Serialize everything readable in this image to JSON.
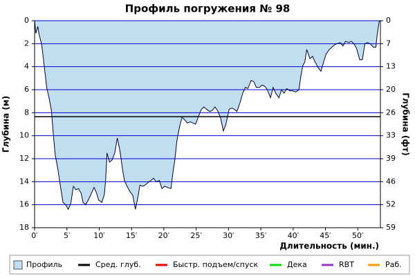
{
  "chart_data": {
    "type": "area",
    "title": "Профиль погружения № 98",
    "x_label": "Длительность (мин.)",
    "y_label": "Глубина (м)",
    "y2_label": "Глубина (фт)",
    "inverted_y": true,
    "grid": true,
    "grid_color": "#0000cc",
    "xlim": [
      0,
      53.5
    ],
    "xticks": [
      {
        "value": 0,
        "label": "0′"
      },
      {
        "value": 5,
        "label": "5′"
      },
      {
        "value": 10,
        "label": "10′"
      },
      {
        "value": 15,
        "label": "15′"
      },
      {
        "value": 20,
        "label": "20′"
      },
      {
        "value": 25,
        "label": "25′"
      },
      {
        "value": 30,
        "label": "30′"
      },
      {
        "value": 35,
        "label": "35′"
      },
      {
        "value": 40,
        "label": "40′"
      },
      {
        "value": 45,
        "label": "45′"
      },
      {
        "value": 50,
        "label": "50′"
      }
    ],
    "ylim": [
      0,
      18
    ],
    "yticks": [
      0,
      2,
      4,
      6,
      8,
      10,
      12,
      14,
      16,
      18
    ],
    "y2lim": [
      0,
      59.06
    ],
    "y2ticks": [
      0,
      {
        "value": 6.56,
        "label": "7"
      },
      {
        "value": 13.12,
        "label": "13"
      },
      {
        "value": 19.69,
        "label": "20"
      },
      {
        "value": 26.25,
        "label": "26"
      },
      {
        "value": 32.81,
        "label": "33"
      },
      {
        "value": 39.37,
        "label": "39"
      },
      {
        "value": 45.93,
        "label": "46"
      },
      {
        "value": 52.49,
        "label": "52"
      },
      {
        "value": 59.06,
        "label": "59"
      }
    ],
    "x": [
      0,
      0.2,
      0.5,
      0.7,
      1.1,
      1.3,
      1.6,
      1.9,
      2.2,
      2.6,
      2.9,
      3.2,
      3.6,
      4.0,
      4.4,
      4.8,
      5.2,
      5.6,
      6.0,
      6.4,
      6.8,
      7.2,
      7.5,
      7.9,
      8.3,
      8.8,
      9.2,
      9.6,
      9.9,
      10.4,
      10.8,
      11.0,
      11.2,
      11.6,
      12.0,
      12.4,
      12.8,
      13.2,
      13.6,
      13.9,
      14.3,
      14.8,
      15.2,
      15.6,
      16.0,
      16.3,
      16.7,
      17.1,
      17.5,
      18.0,
      18.4,
      18.8,
      19.3,
      19.7,
      20.1,
      20.6,
      21.1,
      21.4,
      21.7,
      22.0,
      22.4,
      22.8,
      23.2,
      23.6,
      24.1,
      24.5,
      24.9,
      25.3,
      25.8,
      26.2,
      26.6,
      27.1,
      27.5,
      27.9,
      28.3,
      28.8,
      29.2,
      29.6,
      30.1,
      30.5,
      30.9,
      31.3,
      31.8,
      32.2,
      32.6,
      33.0,
      33.5,
      33.9,
      34.3,
      34.8,
      35.2,
      35.6,
      36.0,
      36.5,
      36.9,
      37.3,
      37.8,
      38.2,
      38.6,
      39.0,
      39.5,
      39.9,
      40.4,
      40.9,
      41.2,
      41.5,
      41.8,
      42.1,
      42.6,
      43.0,
      43.4,
      43.9,
      44.3,
      44.7,
      45.1,
      45.6,
      46.0,
      46.4,
      46.8,
      47.3,
      47.7,
      48.1,
      48.6,
      49.0,
      49.4,
      49.8,
      50.3,
      50.7,
      51.1,
      51.5,
      51.9,
      52.4,
      52.8,
      53.0,
      53.3,
      53.5
    ],
    "series": [
      {
        "name": "Профиль",
        "color": "#c0deef",
        "line_color": "#000033",
        "values": [
          0,
          1.1,
          0.5,
          1.2,
          2.1,
          3.0,
          4.5,
          5.9,
          6.6,
          7.8,
          9.9,
          11.7,
          12.9,
          14.4,
          15.8,
          16.0,
          16.4,
          15.9,
          14.4,
          14.7,
          14.6,
          15.0,
          15.8,
          16.0,
          15.6,
          15.0,
          14.5,
          15.0,
          15.6,
          15.8,
          15.1,
          13.8,
          11.5,
          12.3,
          12.1,
          11.5,
          10.2,
          11.3,
          12.9,
          13.9,
          14.4,
          14.9,
          15.2,
          16.4,
          15.3,
          14.3,
          14.4,
          14.3,
          14.1,
          13.9,
          13.7,
          14.0,
          13.9,
          14.6,
          14.4,
          14.5,
          14.6,
          13.2,
          12.1,
          10.5,
          9.3,
          8.4,
          8.6,
          8.9,
          8.8,
          8.9,
          9.0,
          8.4,
          7.7,
          7.5,
          7.7,
          7.9,
          7.8,
          7.5,
          7.8,
          8.5,
          9.6,
          9.0,
          7.7,
          7.6,
          7.7,
          7.9,
          7.1,
          6.3,
          5.8,
          5.9,
          5.2,
          5.3,
          5.8,
          5.8,
          5.6,
          5.7,
          6.0,
          6.7,
          5.8,
          6.3,
          6.7,
          6.0,
          6.3,
          5.9,
          6.1,
          6.1,
          6.2,
          6.0,
          4.8,
          3.9,
          3.6,
          2.5,
          3.3,
          3.1,
          3.6,
          4.1,
          4.4,
          3.6,
          2.9,
          2.5,
          2.3,
          2.1,
          2.0,
          1.9,
          2.2,
          1.8,
          1.9,
          1.8,
          2.0,
          2.4,
          3.4,
          3.4,
          2.0,
          1.9,
          2.0,
          2.3,
          2.3,
          1.2,
          0.1,
          0
        ]
      },
      {
        "name": "Сред. глуб.",
        "color": "#000000",
        "value": 8.35
      },
      {
        "name": "Быстр. подъем/спуск",
        "color": "#ff0000"
      },
      {
        "name": "Дека",
        "color": "#00dd00"
      },
      {
        "name": "RBT",
        "color": "#9933cc"
      },
      {
        "name": "Раб.",
        "color": "#ff9900"
      }
    ]
  }
}
